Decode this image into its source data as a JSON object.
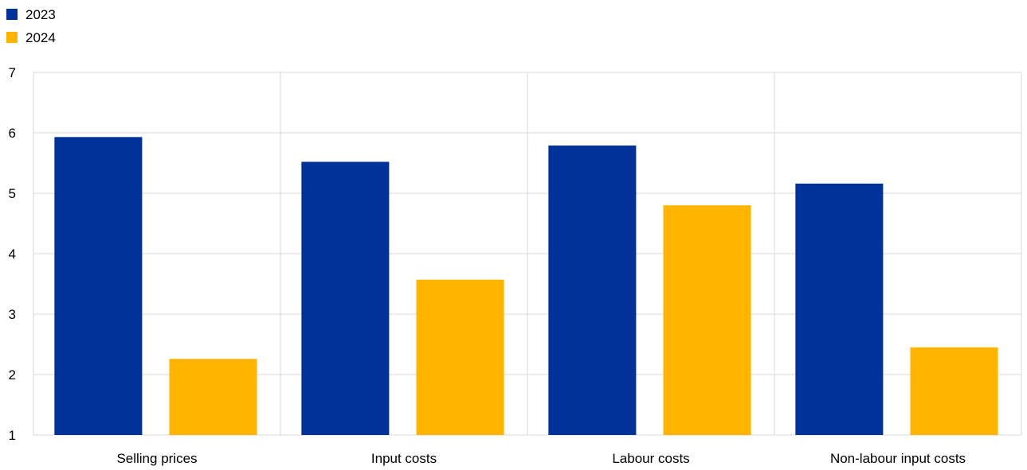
{
  "colors": {
    "series_2023": "#003299",
    "series_2024": "#FFB400",
    "grid": "#D9D9D9",
    "text": "#000000"
  },
  "chart_data": {
    "type": "bar",
    "categories": [
      "Selling prices",
      "Input costs",
      "Labour costs",
      "Non-labour input costs"
    ],
    "series": [
      {
        "name": "2023",
        "values": [
          5.93,
          5.52,
          5.79,
          5.16
        ]
      },
      {
        "name": "2024",
        "values": [
          2.26,
          3.57,
          4.8,
          2.45
        ]
      }
    ],
    "ylim": [
      1,
      7
    ],
    "yticks": [
      "1",
      "2",
      "3",
      "4",
      "5",
      "6",
      "7"
    ],
    "legend": [
      "2023",
      "2024"
    ],
    "legend_position": "top-left",
    "grid": true,
    "title": "",
    "xlabel": "",
    "ylabel": ""
  }
}
